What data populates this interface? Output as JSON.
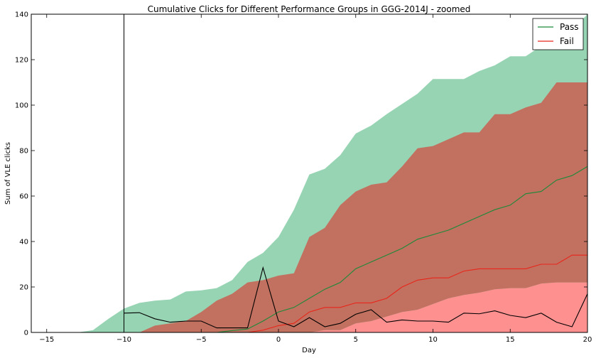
{
  "chart_data": {
    "type": "area",
    "title": "Cumulative Clicks for Different Performance Groups in GGG-2014J - zoomed",
    "xlabel": "Day",
    "ylabel": "Sum of VLE clicks",
    "xlim": [
      -16,
      20
    ],
    "ylim": [
      0,
      140
    ],
    "xticks": [
      -15,
      -10,
      -5,
      0,
      5,
      10,
      15,
      20
    ],
    "yticks": [
      0,
      20,
      40,
      60,
      80,
      100,
      120,
      140
    ],
    "grid": false,
    "legend_position": "top-right",
    "x": [
      -16,
      -15,
      -14,
      -13,
      -12,
      -11,
      -10,
      -9,
      -8,
      -7,
      -6,
      -5,
      -4,
      -3,
      -2,
      -1,
      0,
      1,
      2,
      3,
      4,
      5,
      6,
      7,
      8,
      9,
      10,
      11,
      12,
      13,
      14,
      15,
      16,
      17,
      18,
      19,
      20
    ],
    "series": [
      {
        "name": "Pass",
        "color": "#1a8a3a",
        "band_color": "#66c08f",
        "values": [
          0,
          0,
          0,
          0,
          0,
          0,
          0,
          0,
          0,
          0,
          0,
          0,
          0,
          0.8,
          1.5,
          5,
          9,
          11,
          15,
          19,
          22,
          28,
          31,
          34,
          37,
          41,
          43,
          45,
          48,
          51,
          54,
          56,
          61,
          62,
          67,
          69,
          73
        ],
        "band_upper": [
          0,
          0,
          0,
          0,
          1,
          6,
          10.5,
          13,
          14,
          14.5,
          18,
          18.5,
          19.5,
          23,
          31,
          35,
          42,
          54,
          69.5,
          72,
          78,
          87.5,
          91,
          96,
          100.5,
          105,
          111.5,
          111.5,
          111.5,
          115,
          117.5,
          121.5,
          121.5,
          126,
          127,
          133,
          140
        ],
        "band_lower": [
          0,
          0,
          0,
          0,
          0,
          0,
          0,
          0,
          0,
          0,
          0,
          0,
          0,
          0,
          0,
          0,
          0,
          0,
          0,
          0,
          0,
          0,
          0,
          0,
          0,
          0,
          0,
          0,
          0,
          0,
          0,
          0,
          0,
          0,
          0,
          0,
          0
        ]
      },
      {
        "name": "Fail",
        "color": "#e8251a",
        "band_color": "#c46b5c",
        "values": [
          0,
          0,
          0,
          0,
          0,
          0,
          0,
          0,
          0,
          0,
          0,
          0,
          0,
          0,
          0,
          1,
          3,
          4,
          9,
          11,
          11,
          13,
          13,
          15,
          20,
          23,
          24,
          24,
          27,
          28,
          28,
          28,
          28,
          30,
          30,
          34,
          34
        ],
        "band_upper": [
          0,
          0,
          0,
          0,
          0,
          0,
          0,
          0,
          3,
          4,
          5,
          9,
          14,
          17,
          22,
          23,
          25,
          26,
          42,
          46,
          56,
          62,
          65,
          66,
          73,
          81,
          82,
          85,
          88,
          88,
          96,
          96,
          99,
          101,
          110,
          110,
          110
        ],
        "band_lower": [
          0,
          0,
          0,
          0,
          0,
          0,
          0,
          0,
          0,
          0,
          0,
          0,
          0,
          0,
          0,
          0,
          0,
          0,
          0,
          1,
          1,
          4,
          5,
          7,
          9,
          10,
          12.5,
          15,
          16.5,
          17.5,
          19,
          19.5,
          19.5,
          21.5,
          22,
          22,
          22
        ]
      }
    ],
    "fail_lower_fill_color": "#ff9090",
    "extra_line": {
      "color": "#000000",
      "x": [
        -10,
        -9,
        -8,
        -7,
        -6,
        -5,
        -4,
        -3,
        -2,
        -1,
        0,
        1,
        2,
        3,
        4,
        5,
        6,
        7,
        8,
        9,
        10,
        11,
        12,
        13,
        14,
        15,
        16,
        17,
        18,
        19,
        20
      ],
      "values": [
        8.5,
        8.7,
        6,
        4.5,
        5,
        5,
        2,
        2,
        2,
        28.5,
        5,
        2.5,
        6.5,
        2.5,
        4,
        8,
        10,
        4.5,
        5.5,
        5,
        5,
        4.5,
        8.5,
        8.2,
        9.5,
        7.5,
        6.5,
        8.5,
        4.5,
        2.5,
        17
      ]
    },
    "vertical_line_x": -10
  }
}
